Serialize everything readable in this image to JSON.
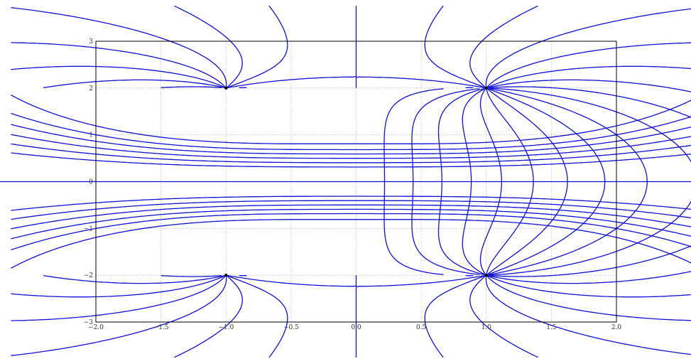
{
  "chart_data": {
    "type": "line",
    "title": "",
    "xlabel": "",
    "ylabel": "",
    "xlim": [
      -2.0,
      2.0
    ],
    "ylim": [
      -3,
      3
    ],
    "x_ticks": [
      -2.0,
      -1.5,
      -1.0,
      -0.5,
      0.0,
      0.5,
      1.0,
      1.5,
      2.0
    ],
    "x_tick_labels": [
      "−2.0",
      "−1.5",
      "−1.0",
      "−0.5",
      "0.0",
      "0.5",
      "1.0",
      "1.5",
      "2.0"
    ],
    "y_ticks": [
      -3,
      -2,
      -1,
      0,
      1,
      2,
      3
    ],
    "y_tick_labels": [
      "−3",
      "−2",
      "−1",
      "0",
      "1",
      "2",
      "3"
    ],
    "grid": true,
    "legend": "none",
    "colors": {
      "curve": "#1010d8",
      "point": "#000000",
      "axes": "#000000",
      "grid": "#bdbdbd"
    },
    "points": [
      {
        "x": -1.0,
        "y": 2.0
      },
      {
        "x": 1.0,
        "y": 2.0
      },
      {
        "x": -1.0,
        "y": -2.0
      },
      {
        "x": 1.0,
        "y": -2.0
      }
    ],
    "series": [
      {
        "values": [
          0.0
        ]
      }
    ]
  }
}
